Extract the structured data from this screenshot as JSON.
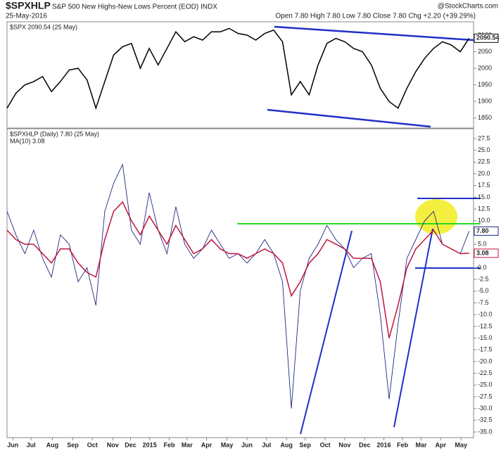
{
  "header": {
    "symbol": "$SPXHLP",
    "title": "S&P 500 New Highs-New Lows Percent (EOD) INDX",
    "date": "25-May-2016",
    "watermark": "@StockCharts.com",
    "quote": "Open 7.80  High 7.80  Low 7.80  Close 7.80  Chg +2.20 (+39.29%)"
  },
  "chart_data": [
    {
      "type": "line",
      "x": [
        0,
        2,
        4,
        6,
        8,
        10,
        12,
        14,
        16,
        18,
        20,
        22,
        24,
        26,
        28,
        30,
        32,
        34,
        36,
        38,
        40,
        42,
        44,
        46,
        48,
        50,
        52,
        54,
        56,
        58,
        60,
        62,
        64,
        66,
        68,
        70,
        72,
        74,
        76,
        78,
        80,
        82,
        84,
        86,
        88,
        90,
        92,
        94,
        96,
        98,
        100,
        102,
        104
      ],
      "series": [
        {
          "name": "$SPX 2090.54 (25 May)",
          "color": "#000000",
          "last_value_label": "2090.54",
          "values": [
            1880,
            1925,
            1950,
            1960,
            1975,
            1930,
            1960,
            1995,
            2000,
            1965,
            1880,
            1960,
            2040,
            2065,
            2075,
            2000,
            2060,
            2010,
            2060,
            2110,
            2080,
            2095,
            2085,
            2110,
            2110,
            2120,
            2105,
            2100,
            2085,
            2105,
            2115,
            2080,
            1920,
            1960,
            1920,
            2010,
            2075,
            2090,
            2080,
            2060,
            2050,
            2010,
            1940,
            1900,
            1880,
            1940,
            1990,
            2030,
            2060,
            2080,
            2070,
            2050,
            2090.54
          ]
        }
      ],
      "xlim": [
        0,
        105
      ],
      "ylim": [
        1820,
        2140
      ],
      "yticks": [
        1850,
        1900,
        1950,
        2000,
        2050,
        2100
      ]
    },
    {
      "type": "line",
      "x": [
        0,
        2,
        4,
        6,
        8,
        10,
        12,
        14,
        16,
        18,
        20,
        22,
        24,
        26,
        28,
        30,
        32,
        34,
        36,
        38,
        40,
        42,
        44,
        46,
        48,
        50,
        52,
        54,
        56,
        58,
        60,
        62,
        64,
        66,
        68,
        70,
        72,
        74,
        76,
        78,
        80,
        82,
        84,
        86,
        88,
        90,
        92,
        94,
        96,
        98,
        100,
        102,
        104
      ],
      "series": [
        {
          "name": "$SPXHLP (Daily) 7.80 (25 May)",
          "color": "#1f2a80",
          "last_value_label": "7.80",
          "values": [
            12,
            7,
            3,
            8,
            2,
            -2,
            7,
            5,
            -3,
            0,
            -8,
            12,
            18,
            22,
            8,
            5,
            16,
            8,
            3,
            13,
            5,
            2,
            4,
            8,
            5,
            2,
            3,
            1,
            3,
            6,
            3,
            -3,
            -30,
            -5,
            2,
            5,
            9,
            6,
            4,
            0,
            2,
            3,
            -10,
            -28,
            -12,
            2,
            6,
            10,
            12,
            5,
            4,
            3,
            7.8
          ]
        },
        {
          "name": "MA(10) 3.08",
          "color": "#c0143c",
          "last_value_label": "3.08",
          "values": [
            8,
            6,
            5,
            5,
            3,
            1,
            4,
            4,
            1,
            -1,
            -2,
            6,
            12,
            14,
            10,
            7,
            11,
            8,
            5,
            9,
            6,
            3,
            4,
            6,
            4,
            3,
            3,
            2,
            3,
            4,
            3,
            1,
            -6,
            -3,
            1,
            3,
            6,
            5,
            4,
            2,
            2,
            2,
            -3,
            -15,
            -8,
            0,
            4,
            6,
            8,
            5,
            4,
            3,
            3.08
          ]
        }
      ],
      "xlim": [
        0,
        105
      ],
      "ylim": [
        -36.2,
        29.6
      ],
      "yticks": [
        {
          "value": 27.5,
          "label": "27.5"
        },
        {
          "value": 25,
          "label": "25.0"
        },
        {
          "value": 22.5,
          "label": "22.5"
        },
        {
          "value": 20,
          "label": "20.0"
        },
        {
          "value": 17.5,
          "label": "17.5"
        },
        {
          "value": 15,
          "label": "15.0"
        },
        {
          "value": 12.5,
          "label": "12.5"
        },
        {
          "value": 10,
          "label": "10.0"
        },
        {
          "value": 7.5,
          "label": "7.5"
        },
        {
          "value": 5,
          "label": "5.0"
        },
        {
          "value": 2.5,
          "label": "2.5"
        },
        {
          "value": 0,
          "label": "0.0"
        },
        {
          "value": -2.5,
          "label": "-2.5"
        },
        {
          "value": -5,
          "label": "-5.0"
        },
        {
          "value": -7.5,
          "label": "-7.5"
        },
        {
          "value": -10,
          "label": "-10.0"
        },
        {
          "value": -12.5,
          "label": "-12.5"
        },
        {
          "value": -15,
          "label": "-15.0"
        },
        {
          "value": -17.5,
          "label": "-17.5"
        },
        {
          "value": -20,
          "label": "-20.0"
        },
        {
          "value": -22.5,
          "label": "-22.5"
        },
        {
          "value": -25,
          "label": "-25.0"
        },
        {
          "value": -27.5,
          "label": "-27.5"
        },
        {
          "value": -30,
          "label": "-30.0"
        },
        {
          "value": -32.5,
          "label": "-32.5"
        },
        {
          "value": -35,
          "label": "-35.0"
        }
      ],
      "xticks": [
        {
          "value": 1.3,
          "label": "Jun"
        },
        {
          "value": 5.4,
          "label": "Jul"
        },
        {
          "value": 10.2,
          "label": "Aug"
        },
        {
          "value": 14.8,
          "label": "Sep"
        },
        {
          "value": 19.2,
          "label": "Oct"
        },
        {
          "value": 23.8,
          "label": "Nov"
        },
        {
          "value": 27.8,
          "label": "Dec"
        },
        {
          "value": 32.1,
          "label": "2015"
        },
        {
          "value": 36.5,
          "label": "Feb"
        },
        {
          "value": 40.5,
          "label": "Mar"
        },
        {
          "value": 44.9,
          "label": "Apr"
        },
        {
          "value": 49.5,
          "label": "May"
        },
        {
          "value": 54,
          "label": "Jun"
        },
        {
          "value": 58.4,
          "label": "Jul"
        },
        {
          "value": 62.9,
          "label": "Aug"
        },
        {
          "value": 67.1,
          "label": "Sep"
        },
        {
          "value": 71.6,
          "label": "Oct"
        },
        {
          "value": 76,
          "label": "Nov"
        },
        {
          "value": 80.5,
          "label": "Dec"
        },
        {
          "value": 84.8,
          "label": "2016"
        },
        {
          "value": 89,
          "label": "Feb"
        },
        {
          "value": 93.2,
          "label": "Mar"
        },
        {
          "value": 97.6,
          "label": "Apr"
        },
        {
          "value": 102.2,
          "label": "May"
        }
      ]
    }
  ]
}
